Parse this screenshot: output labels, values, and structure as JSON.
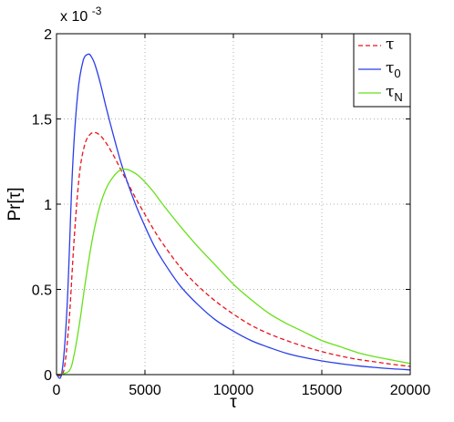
{
  "chart_data": {
    "type": "line",
    "xlabel": "τ",
    "ylabel": "Pr[τ]",
    "exponent_prefix": "x 10",
    "exponent_power": "-3",
    "xlim": [
      0,
      20000
    ],
    "ylim": [
      0,
      2
    ],
    "xticks": [
      0,
      5000,
      10000,
      15000,
      20000
    ],
    "yticks": [
      0,
      0.5,
      1,
      1.5,
      2
    ],
    "xtick_labels": [
      "0",
      "5000",
      "10000",
      "15000",
      "20000"
    ],
    "ytick_labels": [
      "0",
      "0.5",
      "1",
      "1.5",
      "2"
    ],
    "grid": true,
    "legend_position": "top-right",
    "series": [
      {
        "name": "τ",
        "name_sub": "",
        "color": "#e8141c",
        "dash": "dashed",
        "x": [
          0,
          400,
          700,
          1000,
          1300,
          1600,
          1900,
          2200,
          2500,
          2800,
          3200,
          3600,
          4000,
          4500,
          5000,
          5500,
          6000,
          7000,
          8000,
          9000,
          10000,
          11000,
          12000,
          13000,
          14000,
          15000,
          16000,
          17000,
          18000,
          19000,
          20000
        ],
        "y": [
          0,
          0.02,
          0.3,
          0.8,
          1.18,
          1.35,
          1.41,
          1.42,
          1.4,
          1.36,
          1.29,
          1.21,
          1.13,
          1.03,
          0.94,
          0.85,
          0.77,
          0.63,
          0.52,
          0.43,
          0.355,
          0.29,
          0.24,
          0.2,
          0.165,
          0.135,
          0.11,
          0.09,
          0.075,
          0.06,
          0.048
        ]
      },
      {
        "name": "τ",
        "name_sub": "0",
        "color": "#2a3ee8",
        "dash": "solid",
        "x": [
          0,
          300,
          600,
          900,
          1200,
          1500,
          1800,
          2000,
          2200,
          2500,
          2800,
          3200,
          3600,
          4000,
          4500,
          5000,
          5500,
          6000,
          7000,
          8000,
          9000,
          10000,
          11000,
          12000,
          13000,
          14000,
          15000,
          16000,
          17000,
          18000,
          19000,
          20000
        ],
        "y": [
          0,
          0.01,
          0.4,
          1.2,
          1.65,
          1.84,
          1.88,
          1.86,
          1.81,
          1.7,
          1.57,
          1.41,
          1.26,
          1.13,
          0.99,
          0.87,
          0.76,
          0.67,
          0.52,
          0.41,
          0.32,
          0.255,
          0.2,
          0.16,
          0.125,
          0.1,
          0.08,
          0.065,
          0.052,
          0.042,
          0.034,
          0.028
        ]
      },
      {
        "name": "τ",
        "name_sub": "N",
        "color": "#66e01a",
        "dash": "solid",
        "x": [
          0,
          700,
          1000,
          1300,
          1600,
          2000,
          2400,
          2800,
          3200,
          3600,
          3900,
          4200,
          4600,
          5000,
          5500,
          6000,
          7000,
          8000,
          9000,
          10000,
          11000,
          12000,
          13000,
          14000,
          15000,
          16000,
          17000,
          18000,
          19000,
          20000
        ],
        "y": [
          0,
          0.02,
          0.12,
          0.3,
          0.52,
          0.78,
          0.97,
          1.09,
          1.16,
          1.2,
          1.205,
          1.195,
          1.17,
          1.13,
          1.07,
          1.0,
          0.87,
          0.75,
          0.64,
          0.53,
          0.44,
          0.36,
          0.3,
          0.25,
          0.2,
          0.165,
          0.13,
          0.105,
          0.085,
          0.065
        ]
      }
    ]
  }
}
